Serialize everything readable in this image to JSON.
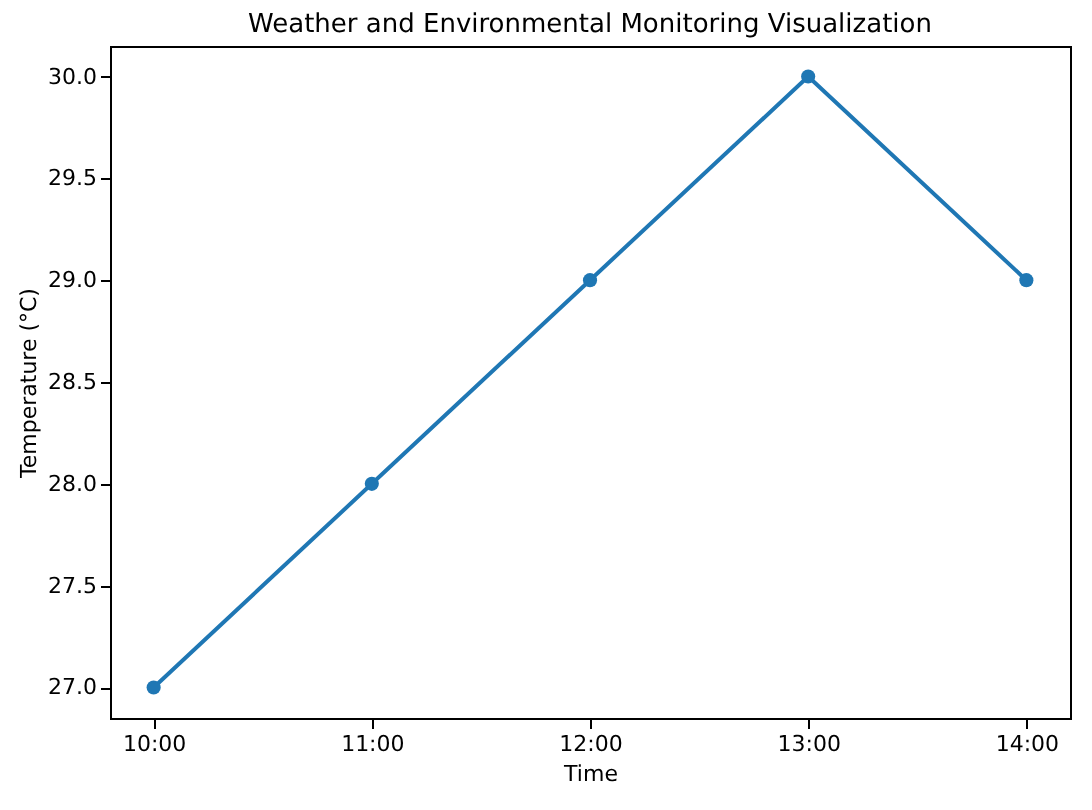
{
  "chart_data": {
    "type": "line",
    "title": "Weather and Environmental Monitoring Visualization",
    "xlabel": "Time",
    "ylabel": "Temperature (°C)",
    "categories": [
      "10:00",
      "11:00",
      "12:00",
      "13:00",
      "14:00"
    ],
    "series": [
      {
        "color": "#1f77b4",
        "values": [
          27,
          28,
          29,
          30,
          29
        ]
      }
    ],
    "ylim": [
      26.85,
      30.15
    ],
    "yticks": [
      {
        "value": 27,
        "label": "27.0"
      },
      {
        "value": 27.5,
        "label": "27.5"
      },
      {
        "value": 28,
        "label": "28.0"
      },
      {
        "value": 28.5,
        "label": "28.5"
      },
      {
        "value": 29,
        "label": "29.0"
      },
      {
        "value": 29.5,
        "label": "29.5"
      },
      {
        "value": 30,
        "label": "30.0"
      }
    ],
    "marker": "circle",
    "grid": false,
    "legend": false
  }
}
